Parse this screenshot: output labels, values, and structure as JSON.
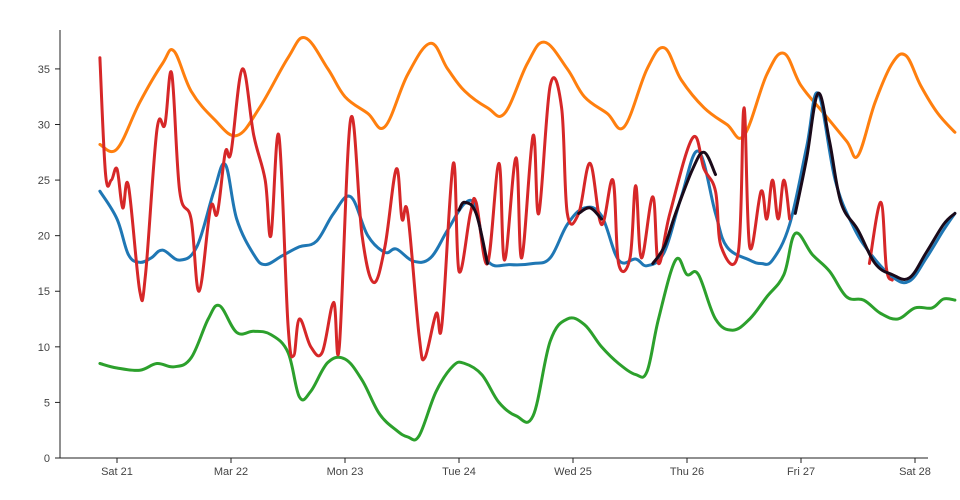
{
  "chart_data": {
    "type": "line",
    "title": "",
    "xlabel": "",
    "ylabel": "",
    "x_ticks": [
      {
        "label": "Sat 21",
        "x": 21
      },
      {
        "label": "Mar 22",
        "x": 22
      },
      {
        "label": "Mon 23",
        "x": 23
      },
      {
        "label": "Tue 24",
        "x": 24
      },
      {
        "label": "Wed 25",
        "x": 25
      },
      {
        "label": "Thu 26",
        "x": 26
      },
      {
        "label": "Fri 27",
        "x": 27
      },
      {
        "label": "Sat 28",
        "x": 28
      }
    ],
    "xlim": [
      20.5,
      28.05
    ],
    "y_ticks": [
      0,
      5,
      10,
      15,
      20,
      25,
      30,
      35
    ],
    "ylim": [
      0,
      38.5
    ],
    "grid": false,
    "legend": "none",
    "series": [
      {
        "color": "#ff7f0e",
        "points": [
          [
            20.85,
            28.2
          ],
          [
            21.0,
            27.8
          ],
          [
            21.2,
            32.0
          ],
          [
            21.4,
            35.5
          ],
          [
            21.5,
            36.6
          ],
          [
            21.65,
            33.0
          ],
          [
            21.85,
            30.5
          ],
          [
            22.05,
            29.0
          ],
          [
            22.25,
            31.5
          ],
          [
            22.5,
            36.0
          ],
          [
            22.65,
            37.8
          ],
          [
            22.85,
            35.0
          ],
          [
            23.0,
            32.5
          ],
          [
            23.2,
            31.0
          ],
          [
            23.35,
            29.8
          ],
          [
            23.55,
            34.5
          ],
          [
            23.75,
            37.3
          ],
          [
            23.9,
            35.0
          ],
          [
            24.05,
            33.0
          ],
          [
            24.25,
            31.5
          ],
          [
            24.4,
            31.0
          ],
          [
            24.6,
            35.5
          ],
          [
            24.75,
            37.4
          ],
          [
            24.95,
            35.0
          ],
          [
            25.1,
            32.5
          ],
          [
            25.3,
            31.0
          ],
          [
            25.45,
            29.8
          ],
          [
            25.65,
            35.0
          ],
          [
            25.8,
            36.9
          ],
          [
            25.95,
            34.0
          ],
          [
            26.15,
            31.5
          ],
          [
            26.35,
            30.0
          ],
          [
            26.5,
            29.0
          ],
          [
            26.7,
            34.5
          ],
          [
            26.85,
            36.4
          ],
          [
            27.0,
            33.5
          ],
          [
            27.2,
            31.0
          ],
          [
            27.4,
            28.5
          ],
          [
            27.5,
            27.2
          ],
          [
            27.65,
            32.0
          ],
          [
            27.8,
            35.5
          ],
          [
            27.92,
            36.2
          ],
          [
            28.05,
            33.5
          ],
          [
            28.2,
            31.0
          ],
          [
            28.35,
            29.3
          ]
        ]
      },
      {
        "color": "#1f77b4",
        "points": [
          [
            20.85,
            24.0
          ],
          [
            21.0,
            21.5
          ],
          [
            21.1,
            18.3
          ],
          [
            21.2,
            17.6
          ],
          [
            21.3,
            18.0
          ],
          [
            21.4,
            18.7
          ],
          [
            21.55,
            17.8
          ],
          [
            21.7,
            19.0
          ],
          [
            21.85,
            24.0
          ],
          [
            21.95,
            26.4
          ],
          [
            22.05,
            21.5
          ],
          [
            22.2,
            18.3
          ],
          [
            22.3,
            17.4
          ],
          [
            22.45,
            18.2
          ],
          [
            22.6,
            19.0
          ],
          [
            22.75,
            19.5
          ],
          [
            22.9,
            22.0
          ],
          [
            23.05,
            23.5
          ],
          [
            23.2,
            20.0
          ],
          [
            23.35,
            18.5
          ],
          [
            23.45,
            18.8
          ],
          [
            23.6,
            17.7
          ],
          [
            23.75,
            18.0
          ],
          [
            23.9,
            20.5
          ],
          [
            24.05,
            22.9
          ],
          [
            24.15,
            22.5
          ],
          [
            24.25,
            17.8
          ],
          [
            24.45,
            17.4
          ],
          [
            24.65,
            17.5
          ],
          [
            24.8,
            18.0
          ],
          [
            24.95,
            21.0
          ],
          [
            25.1,
            22.5
          ],
          [
            25.25,
            21.8
          ],
          [
            25.4,
            17.8
          ],
          [
            25.55,
            17.9
          ],
          [
            25.65,
            17.3
          ],
          [
            25.8,
            18.5
          ],
          [
            25.95,
            23.5
          ],
          [
            26.1,
            27.6
          ],
          [
            26.25,
            22.0
          ],
          [
            26.35,
            19.0
          ],
          [
            26.55,
            17.8
          ],
          [
            26.65,
            17.5
          ],
          [
            26.75,
            17.8
          ],
          [
            26.9,
            21.0
          ],
          [
            27.05,
            28.0
          ],
          [
            27.15,
            32.8
          ],
          [
            27.3,
            25.0
          ],
          [
            27.45,
            21.0
          ],
          [
            27.6,
            18.5
          ],
          [
            27.8,
            16.3
          ],
          [
            27.95,
            15.9
          ],
          [
            28.1,
            18.0
          ],
          [
            28.25,
            20.5
          ],
          [
            28.35,
            22.0
          ]
        ]
      },
      {
        "color": "#2ca02c",
        "points": [
          [
            20.85,
            8.5
          ],
          [
            21.0,
            8.1
          ],
          [
            21.2,
            7.9
          ],
          [
            21.35,
            8.5
          ],
          [
            21.5,
            8.2
          ],
          [
            21.65,
            9.0
          ],
          [
            21.8,
            12.5
          ],
          [
            21.9,
            13.7
          ],
          [
            22.05,
            11.3
          ],
          [
            22.2,
            11.4
          ],
          [
            22.35,
            11.1
          ],
          [
            22.5,
            9.5
          ],
          [
            22.6,
            5.5
          ],
          [
            22.7,
            6.0
          ],
          [
            22.85,
            8.6
          ],
          [
            23.0,
            8.9
          ],
          [
            23.15,
            7.0
          ],
          [
            23.3,
            4.0
          ],
          [
            23.45,
            2.5
          ],
          [
            23.55,
            1.9
          ],
          [
            23.65,
            2.0
          ],
          [
            23.8,
            6.0
          ],
          [
            23.95,
            8.3
          ],
          [
            24.05,
            8.5
          ],
          [
            24.2,
            7.5
          ],
          [
            24.35,
            5.0
          ],
          [
            24.5,
            3.8
          ],
          [
            24.65,
            3.8
          ],
          [
            24.8,
            10.5
          ],
          [
            24.95,
            12.5
          ],
          [
            25.1,
            12.0
          ],
          [
            25.25,
            10.0
          ],
          [
            25.4,
            8.5
          ],
          [
            25.55,
            7.5
          ],
          [
            25.65,
            7.8
          ],
          [
            25.75,
            12.5
          ],
          [
            25.9,
            17.8
          ],
          [
            26.0,
            16.5
          ],
          [
            26.1,
            16.5
          ],
          [
            26.25,
            12.5
          ],
          [
            26.4,
            11.5
          ],
          [
            26.55,
            12.5
          ],
          [
            26.7,
            14.5
          ],
          [
            26.85,
            16.5
          ],
          [
            26.95,
            20.2
          ],
          [
            27.1,
            18.3
          ],
          [
            27.25,
            16.8
          ],
          [
            27.4,
            14.5
          ],
          [
            27.55,
            14.2
          ],
          [
            27.7,
            13.0
          ],
          [
            27.85,
            12.5
          ],
          [
            28.0,
            13.5
          ],
          [
            28.15,
            13.5
          ],
          [
            28.25,
            14.3
          ],
          [
            28.35,
            14.2
          ]
        ]
      },
      {
        "color": "#d62728",
        "points": [
          [
            20.85,
            36.0
          ],
          [
            20.9,
            25.5
          ],
          [
            20.95,
            25.0
          ],
          [
            21.0,
            26.0
          ],
          [
            21.05,
            22.5
          ],
          [
            21.1,
            24.5
          ],
          [
            21.2,
            15.0
          ],
          [
            21.25,
            16.5
          ],
          [
            21.35,
            29.5
          ],
          [
            21.42,
            30.0
          ],
          [
            21.48,
            34.6
          ],
          [
            21.55,
            24.0
          ],
          [
            21.65,
            21.5
          ],
          [
            21.72,
            15.0
          ],
          [
            21.82,
            22.5
          ],
          [
            21.88,
            22.0
          ],
          [
            21.95,
            27.5
          ],
          [
            22.0,
            27.5
          ],
          [
            22.1,
            35.0
          ],
          [
            22.2,
            29.0
          ],
          [
            22.3,
            25.0
          ],
          [
            22.35,
            20.0
          ],
          [
            22.42,
            29.0
          ],
          [
            22.5,
            12.0
          ],
          [
            22.55,
            9.2
          ],
          [
            22.6,
            12.5
          ],
          [
            22.7,
            10.0
          ],
          [
            22.8,
            9.5
          ],
          [
            22.9,
            14.0
          ],
          [
            22.95,
            10.0
          ],
          [
            23.05,
            30.5
          ],
          [
            23.15,
            20.0
          ],
          [
            23.25,
            15.8
          ],
          [
            23.35,
            19.0
          ],
          [
            23.45,
            26.0
          ],
          [
            23.5,
            21.5
          ],
          [
            23.55,
            22.0
          ],
          [
            23.65,
            11.0
          ],
          [
            23.7,
            9.0
          ],
          [
            23.8,
            13.0
          ],
          [
            23.85,
            12.0
          ],
          [
            23.95,
            26.5
          ],
          [
            24.0,
            16.8
          ],
          [
            24.1,
            22.0
          ],
          [
            24.15,
            23.0
          ],
          [
            24.25,
            17.5
          ],
          [
            24.35,
            26.5
          ],
          [
            24.4,
            17.8
          ],
          [
            24.5,
            27.0
          ],
          [
            24.55,
            18.0
          ],
          [
            24.65,
            29.0
          ],
          [
            24.7,
            22.0
          ],
          [
            24.8,
            33.5
          ],
          [
            24.9,
            31.5
          ],
          [
            24.95,
            22.0
          ],
          [
            25.05,
            22.0
          ],
          [
            25.15,
            26.5
          ],
          [
            25.25,
            21.0
          ],
          [
            25.35,
            25.0
          ],
          [
            25.4,
            17.5
          ],
          [
            25.5,
            18.0
          ],
          [
            25.55,
            24.5
          ],
          [
            25.6,
            18.0
          ],
          [
            25.7,
            23.5
          ],
          [
            25.75,
            17.5
          ],
          [
            25.85,
            22.0
          ],
          [
            26.05,
            28.8
          ],
          [
            26.15,
            26.0
          ],
          [
            26.25,
            24.0
          ],
          [
            26.3,
            19.0
          ],
          [
            26.45,
            18.5
          ],
          [
            26.5,
            31.5
          ],
          [
            26.55,
            19.0
          ],
          [
            26.65,
            24.0
          ],
          [
            26.7,
            21.5
          ],
          [
            26.75,
            25.0
          ],
          [
            26.8,
            21.5
          ],
          [
            26.85,
            25.0
          ],
          [
            26.9,
            21.5
          ],
          [
            27.6,
            17.5
          ],
          [
            27.7,
            23.0
          ],
          [
            27.75,
            17.0
          ],
          [
            27.8,
            16.0
          ]
        ]
      },
      {
        "color": "#1a0a1a",
        "points": [
          [
            24.0,
            22.3
          ],
          [
            24.05,
            23.0
          ],
          [
            24.15,
            22.0
          ],
          [
            24.25,
            17.5
          ],
          [
            25.05,
            22.0
          ],
          [
            25.15,
            22.5
          ],
          [
            25.25,
            21.5
          ],
          [
            25.7,
            17.5
          ],
          [
            25.8,
            19.0
          ],
          [
            25.9,
            22.0
          ],
          [
            26.05,
            26.0
          ],
          [
            26.15,
            27.5
          ],
          [
            26.25,
            25.5
          ],
          [
            26.95,
            22.0
          ],
          [
            27.05,
            27.0
          ],
          [
            27.15,
            32.8
          ],
          [
            27.25,
            28.5
          ],
          [
            27.35,
            23.0
          ],
          [
            27.5,
            20.5
          ],
          [
            27.65,
            17.5
          ],
          [
            27.8,
            16.5
          ],
          [
            27.95,
            16.2
          ],
          [
            28.1,
            18.5
          ],
          [
            28.25,
            21.0
          ],
          [
            28.35,
            22.0
          ]
        ]
      }
    ]
  }
}
